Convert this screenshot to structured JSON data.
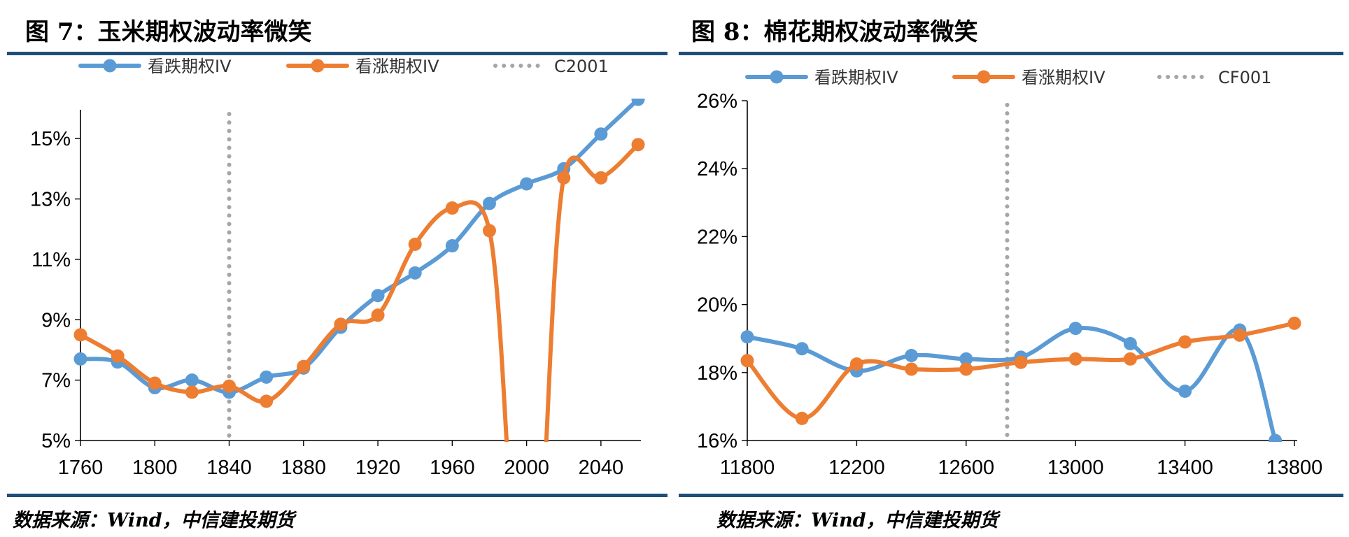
{
  "figure_left": {
    "title": "图 7：玉米期权波动率微笑",
    "source": "数据来源：Wind，中信建投期货"
  },
  "figure_right": {
    "title": "图 8：棉花期权波动率微笑",
    "source": "数据来源：Wind，中信建投期货"
  },
  "colors": {
    "put_iv": "#5b9bd5",
    "call_iv": "#ed7d31",
    "atm_line": "#a6a6a6",
    "rule": "#1f4e79"
  },
  "chart_data": [
    {
      "type": "line",
      "title": "",
      "xlabel": "",
      "ylabel": "",
      "xlim": [
        1760,
        2060
      ],
      "ylim": [
        5,
        16
      ],
      "x_ticks": [
        1760,
        1800,
        1840,
        1880,
        1920,
        1960,
        2000,
        2040
      ],
      "x_tick_labels": [
        "1760",
        "1800",
        "1840",
        "1880",
        "1920",
        "1960",
        "2000",
        "2040"
      ],
      "y_ticks": [
        5,
        7,
        9,
        11,
        13,
        15
      ],
      "y_tick_labels": [
        "5%",
        "7%",
        "9%",
        "11%",
        "13%",
        "15%"
      ],
      "legend_position": "top",
      "grid": false,
      "series": [
        {
          "name": "看跌期权IV",
          "color_key": "put_iv",
          "x": [
            1760,
            1780,
            1800,
            1820,
            1840,
            1860,
            1880,
            1900,
            1920,
            1940,
            1960,
            1980,
            2000,
            2020,
            2040,
            2060
          ],
          "y": [
            7.7,
            7.6,
            6.75,
            7.0,
            6.6,
            7.1,
            7.4,
            8.75,
            9.8,
            10.55,
            11.45,
            12.85,
            13.5,
            14.0,
            15.15,
            16.3
          ]
        },
        {
          "name": "看涨期权IV",
          "color_key": "call_iv",
          "x": [
            1760,
            1780,
            1800,
            1820,
            1840,
            1860,
            1880,
            1900,
            1920,
            1940,
            1960,
            1980,
            2020,
            2040,
            2060
          ],
          "y": [
            8.5,
            7.8,
            6.9,
            6.6,
            6.8,
            6.3,
            7.45,
            8.85,
            9.15,
            11.5,
            12.7,
            11.95,
            13.7,
            13.7,
            14.8
          ],
          "breaks": [
            {
              "between": [
                1980,
                2020
              ],
              "drop_x": [
                1990,
                2010
              ],
              "to_y": 5
            }
          ]
        },
        {
          "name": "C2001",
          "color_key": "atm_line",
          "style": "dotted-vertical",
          "x": 1840
        }
      ]
    },
    {
      "type": "line",
      "title": "",
      "xlabel": "",
      "ylabel": "",
      "xlim": [
        11800,
        13800
      ],
      "ylim": [
        16,
        26
      ],
      "x_ticks": [
        11800,
        12200,
        12600,
        13000,
        13400,
        13800
      ],
      "x_tick_labels": [
        "11800",
        "12200",
        "12600",
        "13000",
        "13400",
        "13800"
      ],
      "y_ticks": [
        16,
        18,
        20,
        22,
        24,
        26
      ],
      "y_tick_labels": [
        "16%",
        "18%",
        "20%",
        "22%",
        "24%",
        "26%"
      ],
      "legend_position": "top",
      "grid": false,
      "series": [
        {
          "name": "看跌期权IV",
          "color_key": "put_iv",
          "x": [
            11800,
            12000,
            12200,
            12400,
            12600,
            12800,
            13000,
            13200,
            13400,
            13600,
            13730
          ],
          "y": [
            19.05,
            18.7,
            18.05,
            18.5,
            18.4,
            18.45,
            19.3,
            18.85,
            17.45,
            19.25,
            16.0
          ]
        },
        {
          "name": "看涨期权IV",
          "color_key": "call_iv",
          "x": [
            11800,
            12000,
            12200,
            12400,
            12600,
            12800,
            13000,
            13200,
            13400,
            13600,
            13800
          ],
          "y": [
            18.35,
            16.65,
            18.25,
            18.1,
            18.1,
            18.3,
            18.4,
            18.4,
            18.9,
            19.1,
            19.45
          ]
        },
        {
          "name": "CF001",
          "color_key": "atm_line",
          "style": "dotted-vertical",
          "x": 12750
        }
      ]
    }
  ]
}
